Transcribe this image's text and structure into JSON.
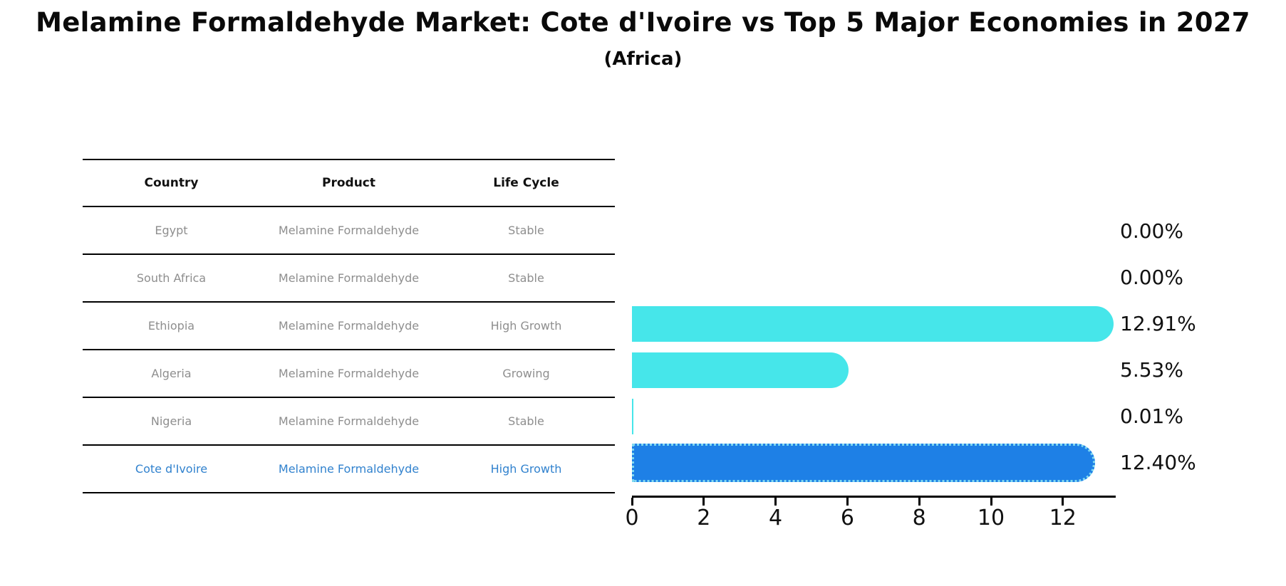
{
  "title": "Melamine Formaldehyde Market: Cote d'Ivoire vs Top 5 Major Economies in 2027",
  "subtitle": "(Africa)",
  "table": {
    "headers": [
      "Country",
      "Product",
      "Life Cycle"
    ],
    "rows": [
      {
        "country": "Egypt",
        "product": "Melamine Formaldehyde",
        "life_cycle": "Stable",
        "highlight": false
      },
      {
        "country": "South Africa",
        "product": "Melamine Formaldehyde",
        "life_cycle": "Stable",
        "highlight": false
      },
      {
        "country": "Ethiopia",
        "product": "Melamine Formaldehyde",
        "life_cycle": "High Growth",
        "highlight": false
      },
      {
        "country": "Algeria",
        "product": "Melamine Formaldehyde",
        "life_cycle": "Growing",
        "highlight": false
      },
      {
        "country": "Nigeria",
        "product": "Melamine Formaldehyde",
        "life_cycle": "Stable",
        "highlight": false
      },
      {
        "country": "Cote d'Ivoire",
        "product": "Melamine Formaldehyde",
        "life_cycle": "High Growth",
        "highlight": true
      }
    ]
  },
  "chart_data": {
    "type": "bar",
    "orientation": "horizontal",
    "title": "Melamine Formaldehyde Market: Cote d'Ivoire vs Top 5 Major Economies in 2027 (Africa)",
    "categories": [
      "Egypt",
      "South Africa",
      "Ethiopia",
      "Algeria",
      "Nigeria",
      "Cote d'Ivoire"
    ],
    "values": [
      0.0,
      0.0,
      12.91,
      5.53,
      0.01,
      12.4
    ],
    "value_labels": [
      "0.00%",
      "0.00%",
      "12.91%",
      "5.53%",
      "0.01%",
      "12.40%"
    ],
    "xlabel": "",
    "ylabel": "",
    "x_ticks": [
      0,
      2,
      4,
      6,
      8,
      10,
      12
    ],
    "xlim": [
      0,
      13.5
    ],
    "grid": false,
    "legend": false,
    "highlight_index": 5
  },
  "colors": {
    "bar": "#46E6EA",
    "highlight_bar": "#1E80E6",
    "highlight_border": "#7FD8F0",
    "highlight_text": "#3182CE",
    "row_text": "#8E8E8E",
    "header_text": "#111111",
    "axis": "#000000"
  }
}
